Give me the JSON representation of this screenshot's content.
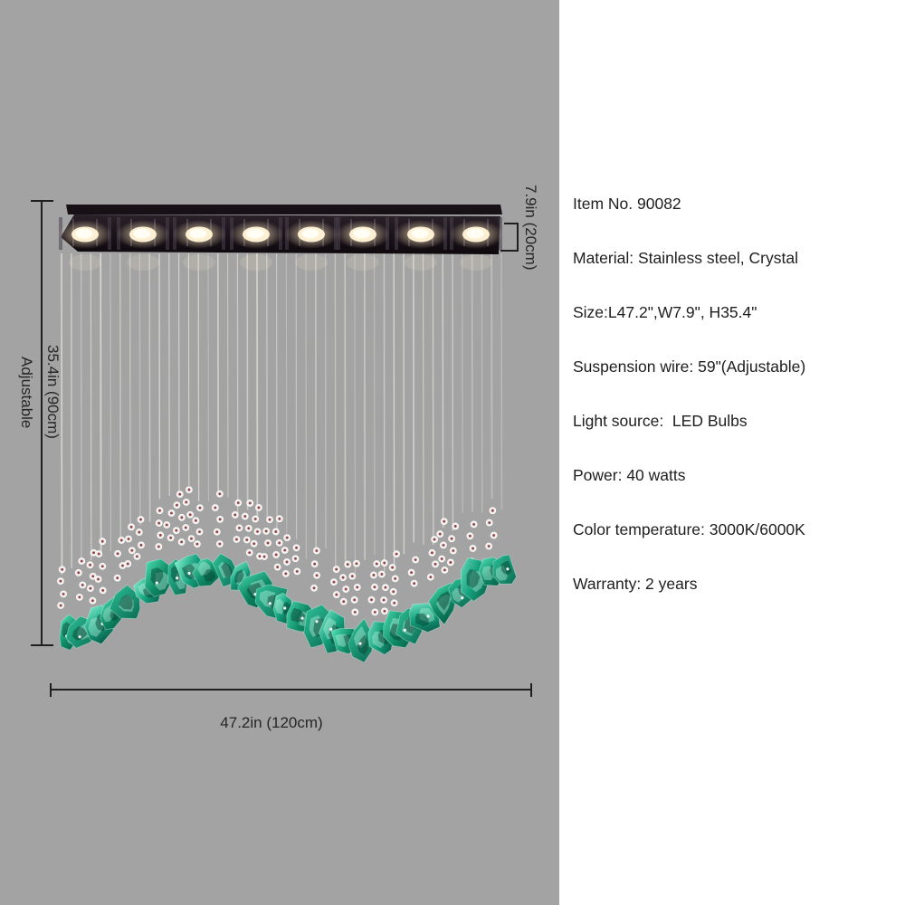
{
  "product": {
    "specs": [
      "Item No. 90082",
      "Material: Stainless steel, Crystal",
      "Size:L47.2\",W7.9\", H35.4\"",
      "Suspension wire: 59\"(Adjustable)",
      "Light source:  LED Bulbs",
      "Power: 40 watts",
      "Color temperature: 3000K/6000K",
      "Warranty: 2 years"
    ]
  },
  "dimensions": {
    "height": "35.4in (90cm)",
    "height_note": "Adjustable",
    "depth": "7.9in (20cm)",
    "width": "47.2in (120cm)"
  },
  "illustration": {
    "light_count": 8,
    "photo_background": "#a3a3a3",
    "crystal_color": "#129a77",
    "plate_color": "#1d151c",
    "light_glow_color": "#fff3d6",
    "bead_center_color": "#8e4049"
  }
}
